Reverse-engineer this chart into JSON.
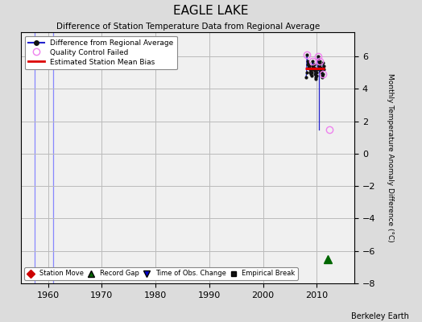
{
  "title": "EAGLE LAKE",
  "subtitle": "Difference of Station Temperature Data from Regional Average",
  "ylabel": "Monthly Temperature Anomaly Difference (°C)",
  "xlabel_credit": "Berkeley Earth",
  "xlim": [
    1955,
    2017
  ],
  "ylim": [
    -8,
    7.5
  ],
  "yticks": [
    -8,
    -6,
    -4,
    -2,
    0,
    2,
    4,
    6
  ],
  "xticks": [
    1960,
    1970,
    1980,
    1990,
    2000,
    2010
  ],
  "background_color": "#dcdcdc",
  "plot_bg_color": "#f0f0f0",
  "grid_color": "#bbbbbb",
  "station_vertical_lines": [
    {
      "x": 1957.5,
      "color": "#8888ff"
    },
    {
      "x": 1961.0,
      "color": "#8888ff"
    }
  ],
  "main_data_x": [
    2008.0,
    2008.08,
    2008.17,
    2008.25,
    2008.33,
    2008.42,
    2008.5,
    2008.58,
    2008.67,
    2008.75,
    2008.83,
    2008.92,
    2009.0,
    2009.08,
    2009.17,
    2009.25,
    2009.33,
    2009.42,
    2009.5,
    2009.58,
    2009.67,
    2009.75,
    2009.83,
    2009.92,
    2010.0,
    2010.08,
    2010.17,
    2010.25,
    2010.33,
    2010.42,
    2010.5,
    2010.58,
    2010.67,
    2010.75,
    2010.83,
    2010.92,
    2011.0,
    2011.08,
    2011.17,
    2011.25,
    2011.33
  ],
  "main_data_y": [
    4.7,
    5.0,
    6.1,
    5.7,
    5.5,
    5.3,
    5.6,
    5.4,
    5.2,
    5.0,
    4.9,
    5.1,
    4.8,
    5.0,
    5.7,
    5.4,
    5.2,
    5.5,
    5.3,
    5.1,
    4.9,
    4.7,
    4.6,
    4.8,
    5.0,
    5.2,
    6.0,
    5.8,
    5.6,
    5.4,
    5.7,
    5.5,
    5.3,
    5.1,
    5.0,
    4.8,
    4.7,
    4.9,
    5.6,
    5.4,
    5.2
  ],
  "vertical_connector_x": 2010.42,
  "vertical_connector_y_top": 5.7,
  "vertical_connector_y_bot": 1.5,
  "qc_failed_x": [
    2008.17,
    2009.17,
    2010.17,
    2010.5,
    2011.08
  ],
  "qc_failed_y": [
    6.1,
    5.7,
    6.0,
    5.7,
    4.9
  ],
  "qc_isolated_x": [
    2012.3
  ],
  "qc_isolated_y": [
    1.5
  ],
  "bias_line_x": [
    2007.9,
    2011.5
  ],
  "bias_line_y": [
    5.25,
    5.25
  ],
  "record_gap_x": [
    2012.0
  ],
  "record_gap_y": [
    -6.5
  ],
  "main_line_color": "#2222cc",
  "main_marker_color": "#111111",
  "qc_failed_color": "#ee82ee",
  "bias_line_color": "#dd0000",
  "station_move_color": "#cc0000",
  "record_gap_color": "#006600",
  "time_obs_color": "#0000cc",
  "empirical_break_color": "#111111"
}
